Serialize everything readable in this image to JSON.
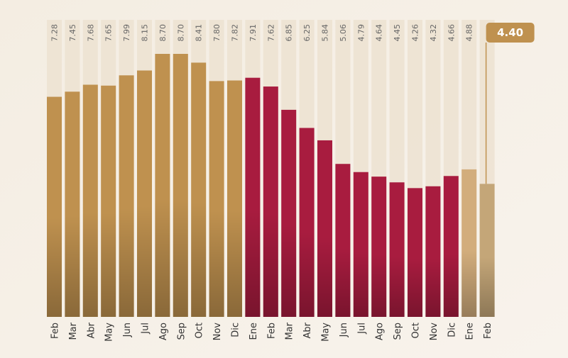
{
  "chart_data": {
    "type": "bar",
    "categories": [
      "Feb",
      "Mar",
      "Abr",
      "May",
      "Jun",
      "Jul",
      "Ago",
      "Sep",
      "Oct",
      "Nov",
      "Dic",
      "Ene",
      "Feb",
      "Mar",
      "Abr",
      "May",
      "Jun",
      "Jul",
      "Ago",
      "Sep",
      "Oct",
      "Nov",
      "Dic",
      "Ene",
      "Feb"
    ],
    "values": [
      7.28,
      7.45,
      7.68,
      7.65,
      7.99,
      8.15,
      8.7,
      8.7,
      8.41,
      7.8,
      7.82,
      7.91,
      7.62,
      6.85,
      6.25,
      5.84,
      5.06,
      4.79,
      4.64,
      4.45,
      4.26,
      4.32,
      4.66,
      4.88,
      4.4
    ],
    "value_labels": [
      "7.28",
      "7.45",
      "7.68",
      "7.65",
      "7.99",
      "8.15",
      "8.70",
      "8.70",
      "8.41",
      "7.80",
      "7.82",
      "7.91",
      "7.62",
      "6.85",
      "6.25",
      "5.84",
      "5.06",
      "4.79",
      "4.64",
      "4.45",
      "4.26",
      "4.32",
      "4.66",
      "4.88",
      "4.40"
    ],
    "colors": [
      "#bf914f",
      "#bf914f",
      "#bf914f",
      "#bf914f",
      "#bf914f",
      "#bf914f",
      "#bf914f",
      "#bf914f",
      "#bf914f",
      "#bf914f",
      "#bf914f",
      "#a81c3f",
      "#a81c3f",
      "#a81c3f",
      "#a81c3f",
      "#a81c3f",
      "#a81c3f",
      "#a81c3f",
      "#a81c3f",
      "#a81c3f",
      "#a81c3f",
      "#a81c3f",
      "#a81c3f",
      "#d2ad7c",
      "#c4a678"
    ]
  }
}
